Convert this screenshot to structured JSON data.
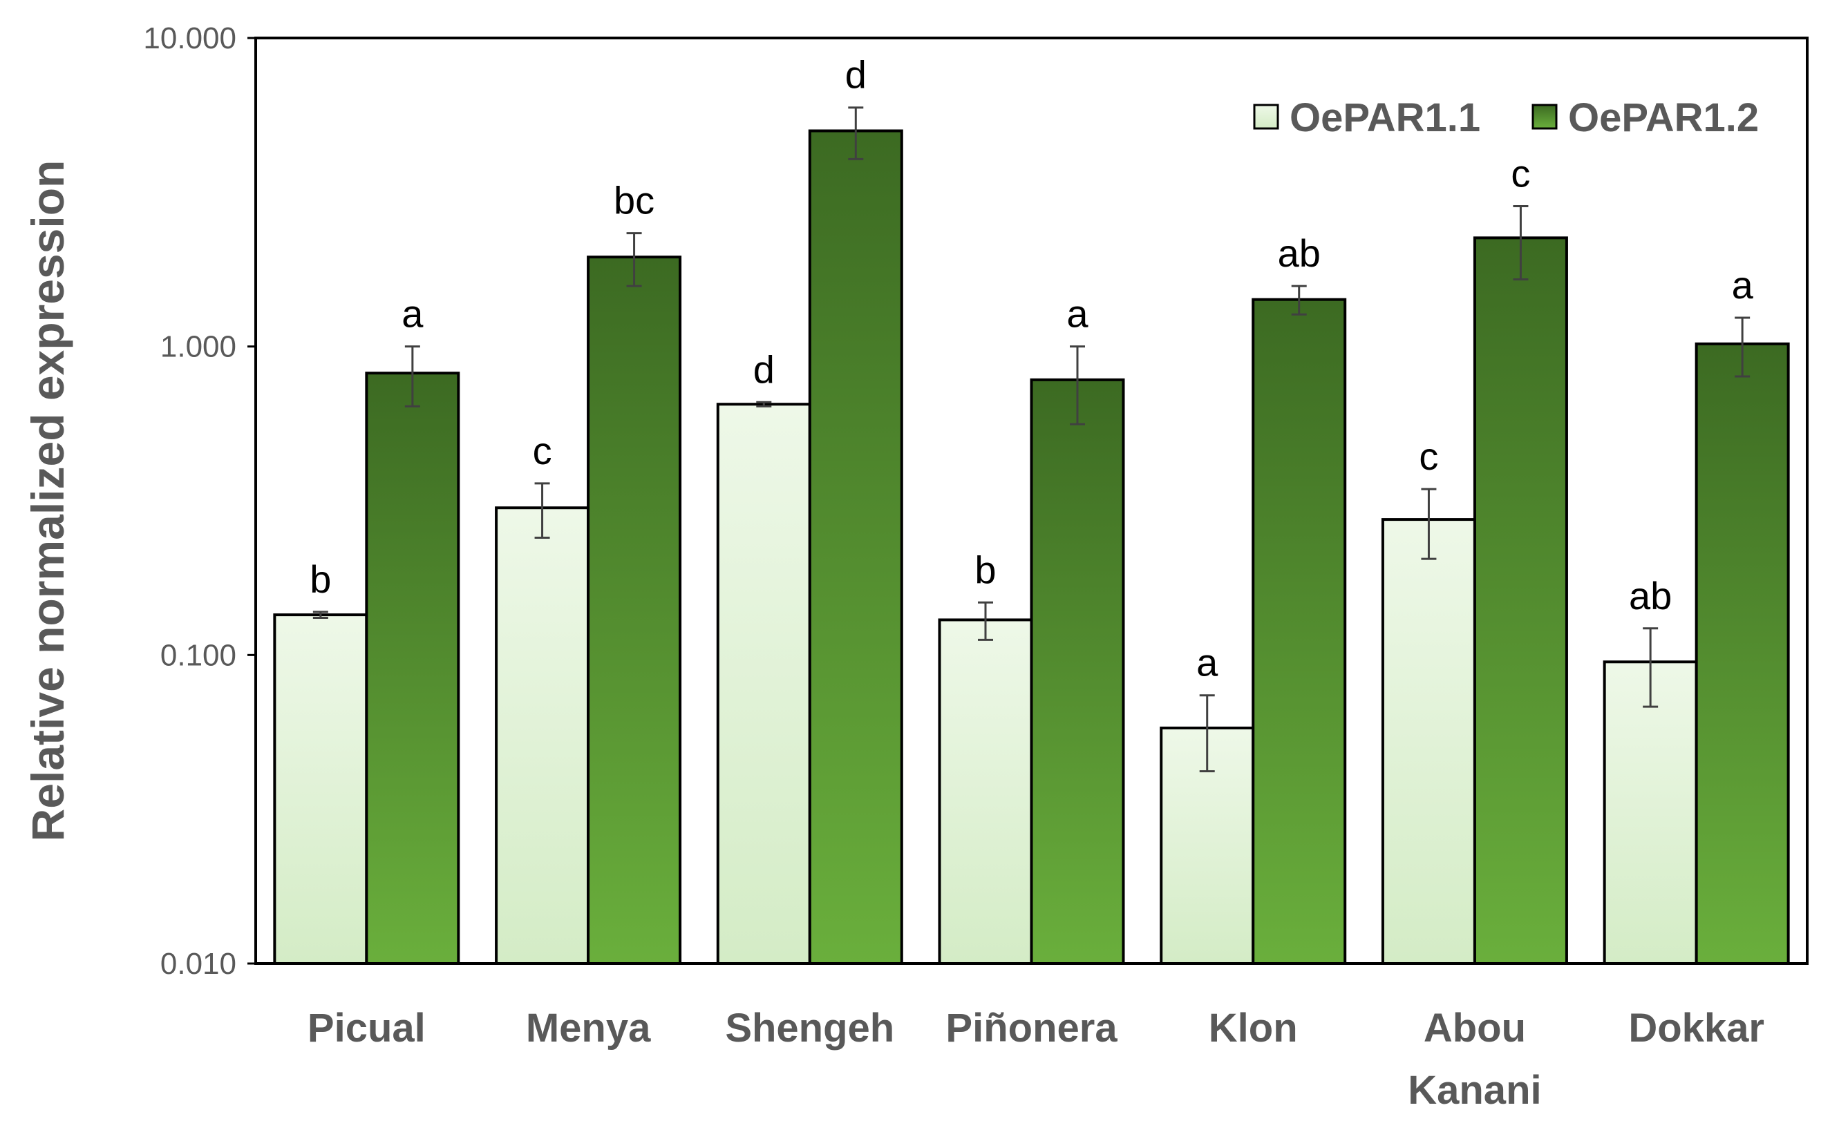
{
  "chart_data": {
    "type": "bar",
    "scale": "log",
    "title": "",
    "xlabel": "",
    "ylabel": "Relative normalized expression",
    "ylim": [
      0.01,
      10
    ],
    "yticks": [
      0.01,
      0.1,
      1,
      10
    ],
    "ytick_labels": [
      "0.010",
      "0.100",
      "1.000",
      "10.000"
    ],
    "categories": [
      [
        "Picual"
      ],
      [
        "Menya"
      ],
      [
        "Shengeh"
      ],
      [
        "Piñonera"
      ],
      [
        "Klon"
      ],
      [
        "Abou",
        "Kanani"
      ],
      [
        "Dokkar"
      ]
    ],
    "legend_position": "top-right",
    "series": [
      {
        "name": "OePAR1.1",
        "color_top": "#eef8e8",
        "color_bottom": "#d4ecc6",
        "values": [
          0.135,
          0.3,
          0.65,
          0.13,
          0.058,
          0.275,
          0.095
        ],
        "errors": [
          0.003,
          0.06,
          0.01,
          0.018,
          0.016,
          0.07,
          0.027
        ],
        "labels": [
          "b",
          "c",
          "d",
          "b",
          "a",
          "c",
          "ab"
        ]
      },
      {
        "name": "OePAR1.2",
        "color_top": "#3c6a22",
        "color_bottom": "#6aaf3c",
        "values": [
          0.82,
          1.95,
          5.0,
          0.78,
          1.42,
          2.25,
          1.02
        ],
        "errors": [
          0.18,
          0.38,
          0.95,
          0.22,
          0.15,
          0.6,
          0.22
        ],
        "labels": [
          "a",
          "bc",
          "d",
          "a",
          "ab",
          "c",
          "a"
        ]
      }
    ]
  }
}
